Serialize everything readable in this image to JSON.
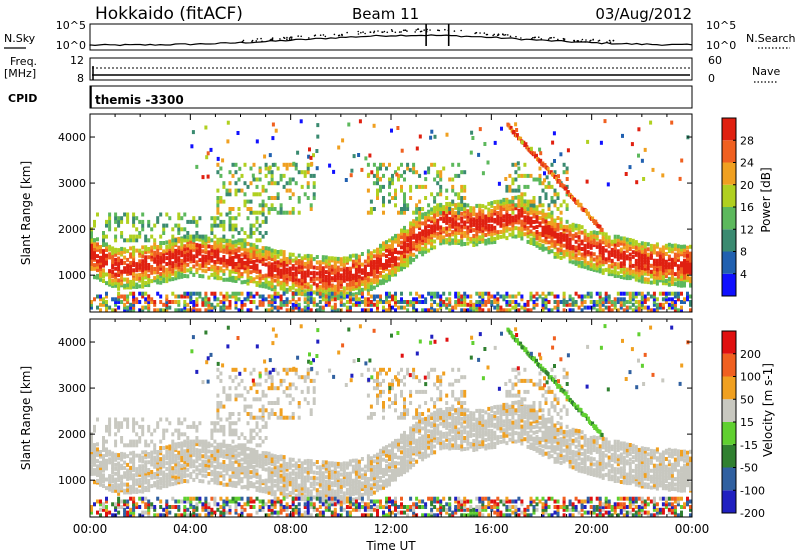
{
  "header": {
    "title": "Hokkaido (fitACF)",
    "beam": "Beam 11",
    "date": "03/Aug/2012"
  },
  "small_panels": {
    "nsky_label": "N.Sky",
    "nsky_ticks": [
      "10^5",
      "10^0"
    ],
    "nsearch_label": "N.Search",
    "freq_label_1": "Freq.",
    "freq_label_2": "[MHz]",
    "freq_ticks": [
      "12",
      "8"
    ],
    "nave_ticks": [
      "60",
      "0"
    ],
    "nave_label": "Nave",
    "cpid_label": "CPID",
    "cpid_value": "themis -3300"
  },
  "chart_data": [
    {
      "type": "heatmap",
      "name": "power",
      "ylabel": "Slant Range [km]",
      "yticks": [
        1000,
        2000,
        3000,
        4000
      ],
      "ylim": [
        200,
        4500
      ],
      "xlim_hours": [
        0,
        24
      ],
      "colorbar_label": "Power [dB]",
      "colorbar_ticks": [
        4,
        8,
        12,
        16,
        20,
        24,
        28
      ],
      "colors": [
        "#1010ff",
        "#2060b0",
        "#3a8a70",
        "#5cb85c",
        "#b0d020",
        "#f0a020",
        "#f06020",
        "#e02010"
      ],
      "main_echo_band": [
        {
          "h": 0.0,
          "r": 1500
        },
        {
          "h": 1.0,
          "r": 1200
        },
        {
          "h": 2.0,
          "r": 1250
        },
        {
          "h": 4.0,
          "r": 1500
        },
        {
          "h": 6.0,
          "r": 1350
        },
        {
          "h": 8.0,
          "r": 1100
        },
        {
          "h": 10.0,
          "r": 1000
        },
        {
          "h": 11.0,
          "r": 1150
        },
        {
          "h": 12.0,
          "r": 1450
        },
        {
          "h": 13.0,
          "r": 1900
        },
        {
          "h": 14.0,
          "r": 2200
        },
        {
          "h": 15.5,
          "r": 2150
        },
        {
          "h": 17.0,
          "r": 2350
        },
        {
          "h": 18.5,
          "r": 1900
        },
        {
          "h": 20.0,
          "r": 1600
        },
        {
          "h": 22.0,
          "r": 1350
        },
        {
          "h": 24.0,
          "r": 1250
        }
      ]
    },
    {
      "type": "heatmap",
      "name": "velocity",
      "ylabel": "Slant Range [km]",
      "yticks": [
        1000,
        2000,
        3000,
        4000
      ],
      "ylim": [
        200,
        4500
      ],
      "xlabel": "Time UT",
      "xticks": [
        "00:00",
        "04:00",
        "08:00",
        "12:00",
        "16:00",
        "20:00",
        "00:00"
      ],
      "colorbar_label": "Velocity [m s-1]",
      "colorbar_ticks": [
        200,
        100,
        50,
        15,
        -15,
        -50,
        -100,
        -200
      ],
      "colors": [
        "#2020c0",
        "#3060a0",
        "#308030",
        "#60d030",
        "#c8c8c0",
        "#f0a020",
        "#f06020",
        "#e01010"
      ]
    }
  ]
}
